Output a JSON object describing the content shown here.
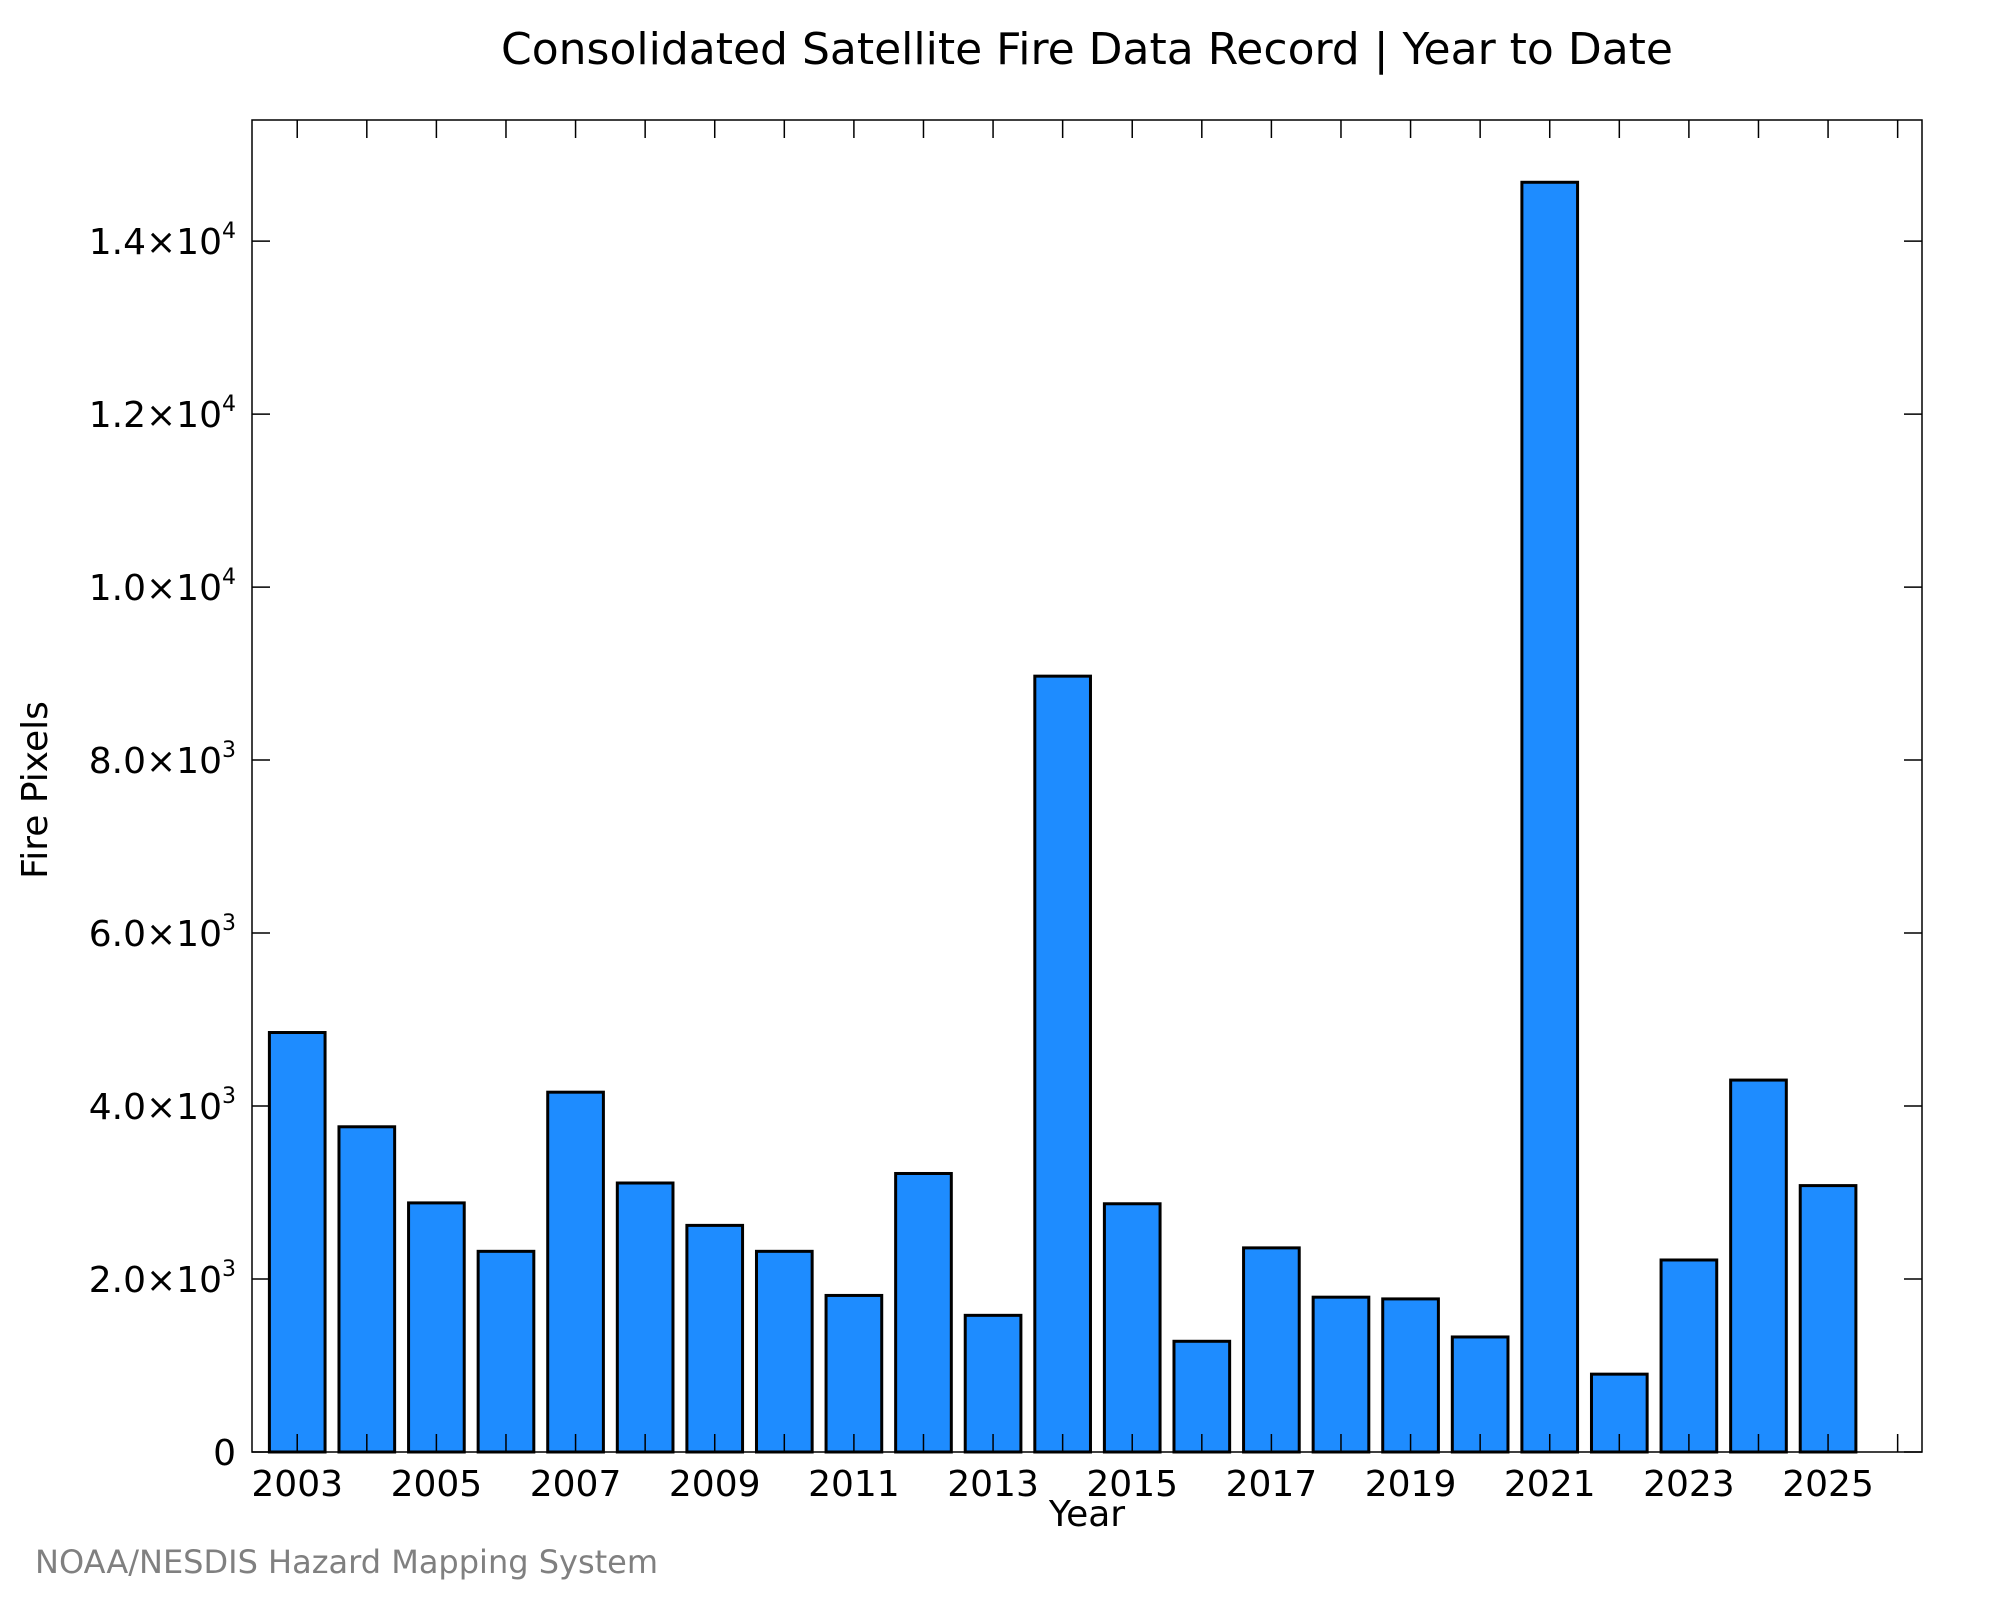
{
  "chart_data": {
    "type": "bar",
    "title": "Consolidated Satellite Fire Data Record | Year to Date",
    "xlabel": "Year",
    "ylabel": "Fire Pixels",
    "categories": [
      "2003",
      "2004",
      "2005",
      "2006",
      "2007",
      "2008",
      "2009",
      "2010",
      "2011",
      "2012",
      "2013",
      "2014",
      "2015",
      "2016",
      "2017",
      "2018",
      "2019",
      "2020",
      "2021",
      "2022",
      "2023",
      "2024",
      "2025"
    ],
    "values": [
      4850,
      3760,
      2880,
      2320,
      4160,
      3110,
      2620,
      2320,
      1810,
      3220,
      1580,
      8970,
      2870,
      1280,
      2360,
      1790,
      1770,
      1330,
      14680,
      900,
      2220,
      4300,
      3080
    ],
    "ylim": [
      0,
      15400
    ],
    "xlim": [
      2002.35,
      2026.35
    ],
    "x_tick_labels": [
      "2003",
      "2005",
      "2007",
      "2009",
      "2011",
      "2013",
      "2015",
      "2017",
      "2019",
      "2021",
      "2023",
      "2025"
    ],
    "y_ticks": [
      {
        "value": 0,
        "mantissa": "0",
        "exponent": ""
      },
      {
        "value": 2000,
        "mantissa": "2.0×10",
        "exponent": "3"
      },
      {
        "value": 4000,
        "mantissa": "4.0×10",
        "exponent": "3"
      },
      {
        "value": 6000,
        "mantissa": "6.0×10",
        "exponent": "3"
      },
      {
        "value": 8000,
        "mantissa": "8.0×10",
        "exponent": "3"
      },
      {
        "value": 10000,
        "mantissa": "1.0×10",
        "exponent": "4"
      },
      {
        "value": 12000,
        "mantissa": "1.2×10",
        "exponent": "4"
      },
      {
        "value": 14000,
        "mantissa": "1.4×10",
        "exponent": "4"
      }
    ],
    "bar_color": "#1e8cff",
    "bar_edge_color": "#000000",
    "grid": false,
    "legend": "none"
  },
  "credit": "NOAA/NESDIS Hazard Mapping System"
}
